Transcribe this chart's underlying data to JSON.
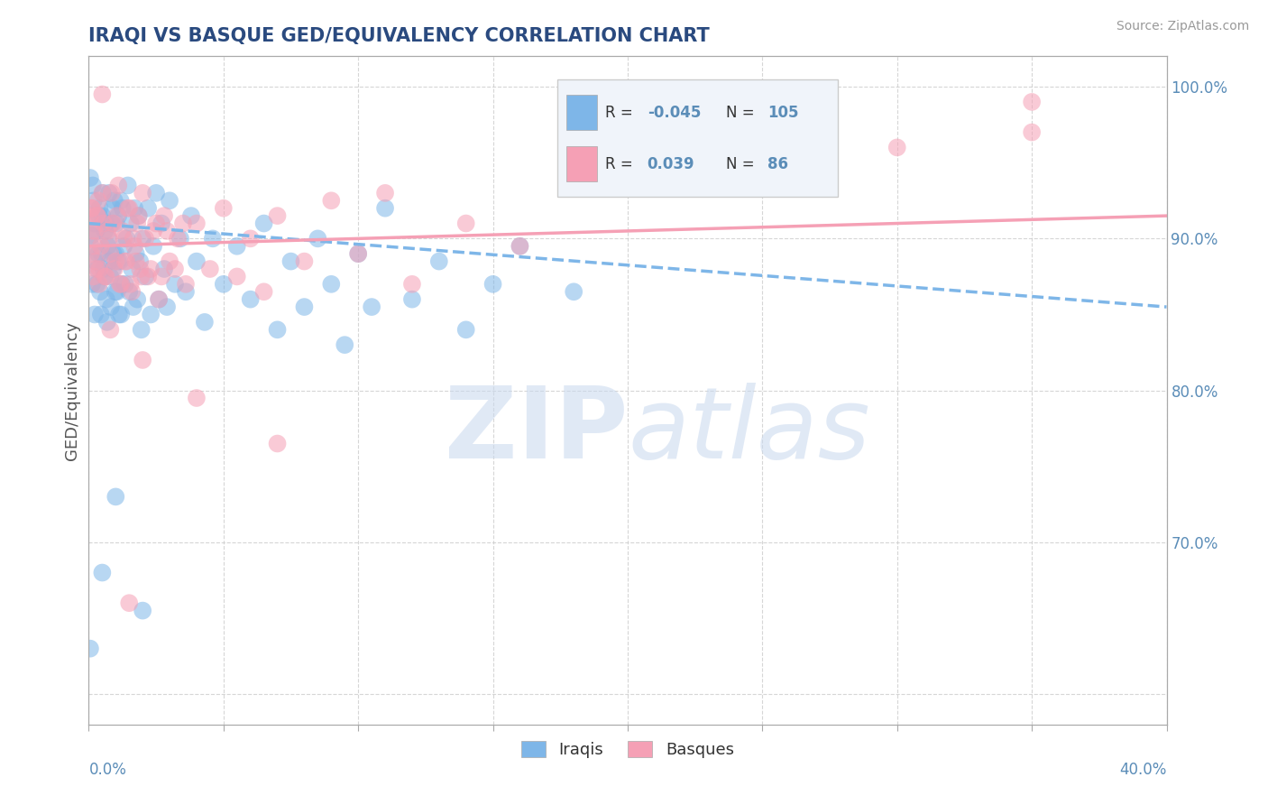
{
  "title": "IRAQI VS BASQUE GED/EQUIVALENCY CORRELATION CHART",
  "source_text": "Source: ZipAtlas.com",
  "ylabel": "GED/Equivalency",
  "xlim": [
    0.0,
    40.0
  ],
  "ylim": [
    58.0,
    102.0
  ],
  "iraqi_color": "#7EB6E8",
  "basque_color": "#F5A0B5",
  "legend_box_color": "#F0F4FA",
  "R_iraqi": -0.045,
  "N_iraqi": 105,
  "R_basque": 0.039,
  "N_basque": 86,
  "title_color": "#2A4A7F",
  "axis_label_color": "#5B8DB8",
  "watermark_color": "#D8E6F5",
  "iraqi_trend": [
    0.0,
    91.0,
    40.0,
    85.5
  ],
  "basque_trend": [
    0.0,
    89.5,
    40.0,
    91.5
  ],
  "iraqi_points": [
    [
      0.05,
      94.0
    ],
    [
      0.08,
      89.5
    ],
    [
      0.1,
      90.2
    ],
    [
      0.12,
      87.0
    ],
    [
      0.15,
      93.5
    ],
    [
      0.18,
      92.5
    ],
    [
      0.2,
      91.0
    ],
    [
      0.22,
      85.0
    ],
    [
      0.25,
      88.5
    ],
    [
      0.28,
      90.5
    ],
    [
      0.3,
      87.0
    ],
    [
      0.32,
      88.0
    ],
    [
      0.35,
      89.0
    ],
    [
      0.38,
      91.5
    ],
    [
      0.4,
      92.0
    ],
    [
      0.42,
      86.5
    ],
    [
      0.45,
      85.0
    ],
    [
      0.48,
      89.0
    ],
    [
      0.5,
      91.5
    ],
    [
      0.52,
      93.0
    ],
    [
      0.55,
      88.0
    ],
    [
      0.58,
      87.5
    ],
    [
      0.6,
      90.5
    ],
    [
      0.62,
      91.0
    ],
    [
      0.65,
      86.0
    ],
    [
      0.68,
      84.5
    ],
    [
      0.7,
      89.5
    ],
    [
      0.72,
      90.0
    ],
    [
      0.75,
      93.0
    ],
    [
      0.78,
      88.5
    ],
    [
      0.8,
      87.5
    ],
    [
      0.82,
      85.5
    ],
    [
      0.85,
      91.0
    ],
    [
      0.88,
      92.0
    ],
    [
      0.9,
      88.0
    ],
    [
      0.92,
      89.0
    ],
    [
      0.95,
      92.5
    ],
    [
      0.98,
      86.5
    ],
    [
      1.0,
      89.0
    ],
    [
      1.02,
      91.0
    ],
    [
      1.05,
      86.5
    ],
    [
      1.08,
      88.5
    ],
    [
      1.1,
      91.5
    ],
    [
      1.12,
      85.0
    ],
    [
      1.15,
      88.5
    ],
    [
      1.18,
      92.5
    ],
    [
      1.2,
      85.0
    ],
    [
      1.22,
      87.0
    ],
    [
      1.25,
      92.0
    ],
    [
      1.3,
      89.5
    ],
    [
      1.35,
      87.0
    ],
    [
      1.4,
      90.0
    ],
    [
      1.45,
      93.5
    ],
    [
      1.5,
      86.5
    ],
    [
      1.55,
      91.0
    ],
    [
      1.6,
      88.0
    ],
    [
      1.65,
      85.5
    ],
    [
      1.7,
      92.0
    ],
    [
      1.75,
      89.0
    ],
    [
      1.8,
      86.0
    ],
    [
      1.85,
      91.5
    ],
    [
      1.9,
      88.5
    ],
    [
      1.95,
      84.0
    ],
    [
      2.0,
      90.0
    ],
    [
      2.1,
      87.5
    ],
    [
      2.2,
      92.0
    ],
    [
      2.3,
      85.0
    ],
    [
      2.4,
      89.5
    ],
    [
      2.5,
      93.0
    ],
    [
      2.6,
      86.0
    ],
    [
      2.7,
      91.0
    ],
    [
      2.8,
      88.0
    ],
    [
      2.9,
      85.5
    ],
    [
      3.0,
      92.5
    ],
    [
      3.2,
      87.0
    ],
    [
      3.4,
      90.0
    ],
    [
      3.6,
      86.5
    ],
    [
      3.8,
      91.5
    ],
    [
      4.0,
      88.5
    ],
    [
      4.3,
      84.5
    ],
    [
      4.6,
      90.0
    ],
    [
      5.0,
      87.0
    ],
    [
      5.5,
      89.5
    ],
    [
      6.0,
      86.0
    ],
    [
      6.5,
      91.0
    ],
    [
      7.0,
      84.0
    ],
    [
      7.5,
      88.5
    ],
    [
      8.0,
      85.5
    ],
    [
      8.5,
      90.0
    ],
    [
      9.0,
      87.0
    ],
    [
      9.5,
      83.0
    ],
    [
      10.0,
      89.0
    ],
    [
      10.5,
      85.5
    ],
    [
      11.0,
      92.0
    ],
    [
      12.0,
      86.0
    ],
    [
      13.0,
      88.5
    ],
    [
      14.0,
      84.0
    ],
    [
      15.0,
      87.0
    ],
    [
      16.0,
      89.5
    ],
    [
      18.0,
      86.5
    ],
    [
      0.05,
      63.0
    ],
    [
      2.0,
      65.5
    ],
    [
      1.0,
      73.0
    ],
    [
      0.5,
      68.0
    ]
  ],
  "basque_points": [
    [
      0.05,
      91.5
    ],
    [
      0.08,
      89.0
    ],
    [
      0.1,
      92.0
    ],
    [
      0.12,
      92.0
    ],
    [
      0.15,
      90.5
    ],
    [
      0.18,
      87.5
    ],
    [
      0.2,
      89.5
    ],
    [
      0.22,
      90.5
    ],
    [
      0.25,
      88.5
    ],
    [
      0.28,
      88.0
    ],
    [
      0.3,
      91.5
    ],
    [
      0.32,
      91.5
    ],
    [
      0.35,
      92.5
    ],
    [
      0.38,
      87.0
    ],
    [
      0.4,
      88.0
    ],
    [
      0.45,
      89.5
    ],
    [
      0.5,
      93.0
    ],
    [
      0.55,
      91.0
    ],
    [
      0.6,
      87.5
    ],
    [
      0.65,
      87.5
    ],
    [
      0.7,
      90.5
    ],
    [
      0.75,
      90.0
    ],
    [
      0.8,
      89.0
    ],
    [
      0.85,
      93.0
    ],
    [
      0.9,
      91.0
    ],
    [
      0.95,
      88.0
    ],
    [
      1.0,
      88.5
    ],
    [
      1.05,
      91.5
    ],
    [
      1.1,
      93.5
    ],
    [
      1.15,
      87.0
    ],
    [
      1.2,
      87.0
    ],
    [
      1.25,
      90.5
    ],
    [
      1.3,
      90.0
    ],
    [
      1.35,
      88.5
    ],
    [
      1.4,
      88.5
    ],
    [
      1.45,
      92.0
    ],
    [
      1.5,
      92.0
    ],
    [
      1.55,
      87.0
    ],
    [
      1.6,
      86.5
    ],
    [
      1.65,
      90.0
    ],
    [
      1.7,
      89.5
    ],
    [
      1.75,
      88.5
    ],
    [
      1.8,
      91.0
    ],
    [
      1.85,
      91.5
    ],
    [
      1.9,
      88.0
    ],
    [
      1.95,
      87.5
    ],
    [
      2.0,
      93.0
    ],
    [
      2.1,
      90.0
    ],
    [
      2.2,
      87.5
    ],
    [
      2.3,
      88.0
    ],
    [
      2.4,
      90.5
    ],
    [
      2.5,
      91.0
    ],
    [
      2.6,
      86.0
    ],
    [
      2.7,
      87.5
    ],
    [
      2.8,
      91.5
    ],
    [
      2.9,
      90.5
    ],
    [
      3.0,
      88.5
    ],
    [
      3.2,
      88.0
    ],
    [
      3.3,
      90.0
    ],
    [
      3.5,
      91.0
    ],
    [
      3.6,
      87.0
    ],
    [
      4.0,
      91.0
    ],
    [
      4.5,
      88.0
    ],
    [
      5.0,
      92.0
    ],
    [
      5.5,
      87.5
    ],
    [
      6.0,
      90.0
    ],
    [
      6.5,
      86.5
    ],
    [
      7.0,
      91.5
    ],
    [
      8.0,
      88.5
    ],
    [
      9.0,
      92.5
    ],
    [
      10.0,
      89.0
    ],
    [
      11.0,
      93.0
    ],
    [
      12.0,
      87.0
    ],
    [
      14.0,
      91.0
    ],
    [
      16.0,
      89.5
    ],
    [
      20.0,
      94.0
    ],
    [
      25.0,
      95.5
    ],
    [
      30.0,
      96.0
    ],
    [
      35.0,
      97.0
    ],
    [
      4.0,
      79.5
    ],
    [
      7.0,
      76.5
    ],
    [
      1.5,
      66.0
    ],
    [
      0.5,
      99.5
    ],
    [
      35.0,
      99.0
    ],
    [
      18.0,
      94.5
    ],
    [
      0.8,
      84.0
    ],
    [
      2.0,
      82.0
    ]
  ]
}
